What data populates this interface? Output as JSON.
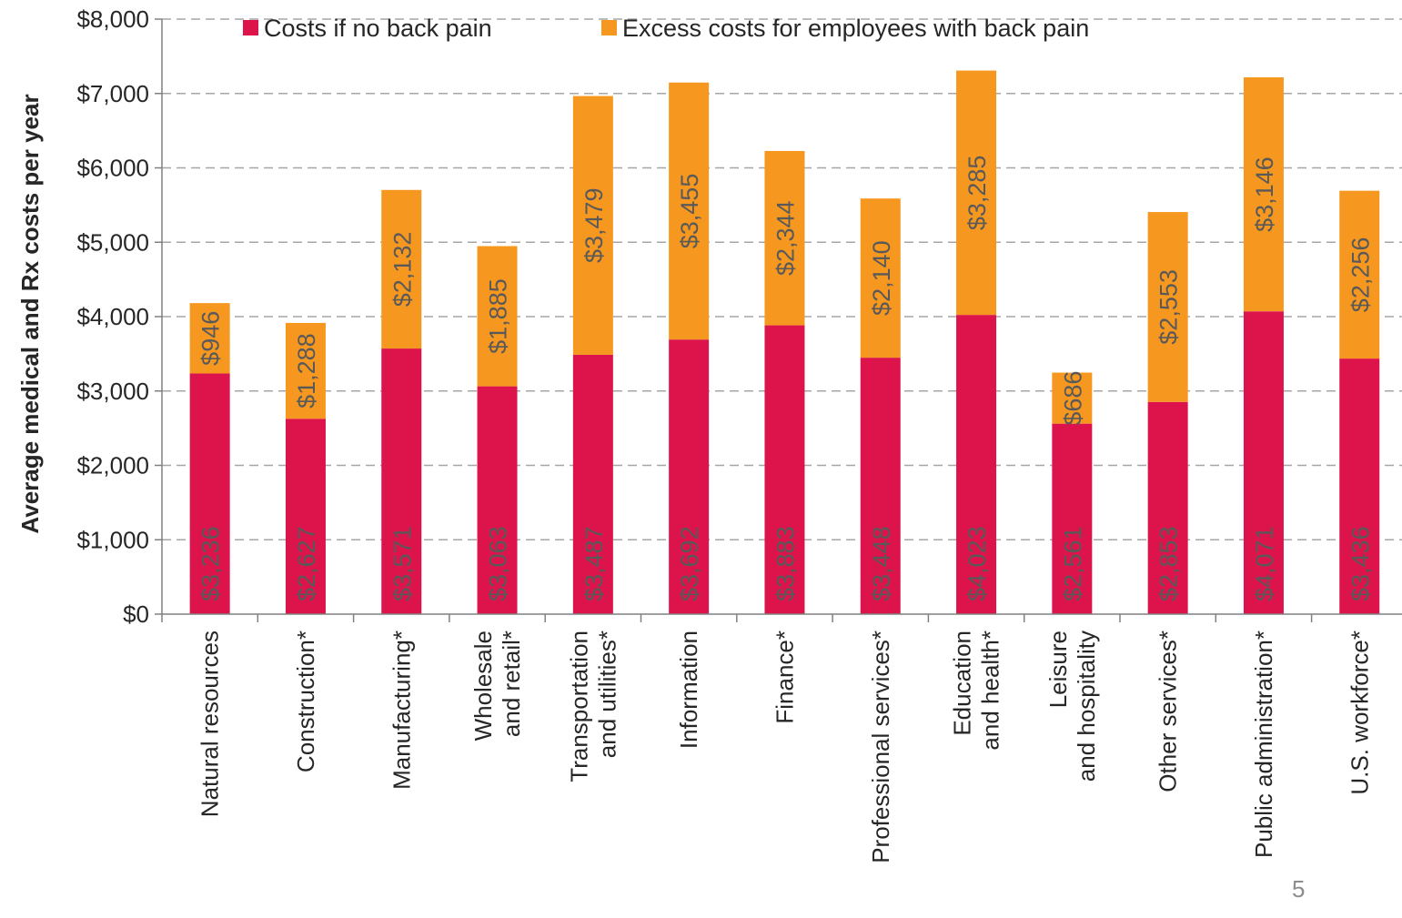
{
  "page_number": "5",
  "colors": {
    "base": "#dc144b",
    "excess": "#f6981f",
    "grid": "#a6a6a6",
    "axis": "#808080",
    "label": "#595959"
  },
  "chart_data": {
    "type": "bar",
    "stacked": true,
    "title": "",
    "xlabel": "",
    "ylabel": "Average medical and Rx costs per year",
    "ylim": [
      0,
      8000
    ],
    "yticks": [
      0,
      1000,
      2000,
      3000,
      4000,
      5000,
      6000,
      7000,
      8000
    ],
    "ytick_labels": [
      "$0",
      "$1,000",
      "$2,000",
      "$3,000",
      "$4,000",
      "$5,000",
      "$6,000",
      "$7,000",
      "$8,000"
    ],
    "grid": "horizontal dashed",
    "legend_position": "top",
    "categories": [
      "Natural resources",
      "Construction*",
      "Manufacturing*",
      "Wholesale\nand retail*",
      "Transportation\nand utilities*",
      "Information",
      "Finance*",
      "Professional services*",
      "Education\nand health*",
      "Leisure\nand hospitality",
      "Other services*",
      "Public administration*",
      "U.S. workforce*"
    ],
    "series": [
      {
        "name": "Costs if no back pain",
        "color": "#dc144b",
        "values": [
          3236,
          2627,
          3571,
          3063,
          3487,
          3692,
          3883,
          3448,
          4023,
          2561,
          2853,
          4071,
          3436
        ],
        "labels": [
          "$3,236",
          "$2,627",
          "$3,571",
          "$3,063",
          "$3,487",
          "$3,692",
          "$3,883",
          "$3,448",
          "$4,023",
          "$2,561",
          "$2,853",
          "$4,071",
          "$3,436"
        ]
      },
      {
        "name": "Excess costs for employees with back pain",
        "color": "#f6981f",
        "values": [
          946,
          1288,
          2132,
          1885,
          3479,
          3455,
          2344,
          2140,
          3285,
          686,
          2553,
          3146,
          2256
        ],
        "labels": [
          "$946",
          "$1,288",
          "$2,132",
          "$1,885",
          "$3,479",
          "$3,455",
          "$2,344",
          "$2,140",
          "$3,285",
          "$686",
          "$2,553",
          "$3,146",
          "$2,256"
        ]
      }
    ]
  }
}
